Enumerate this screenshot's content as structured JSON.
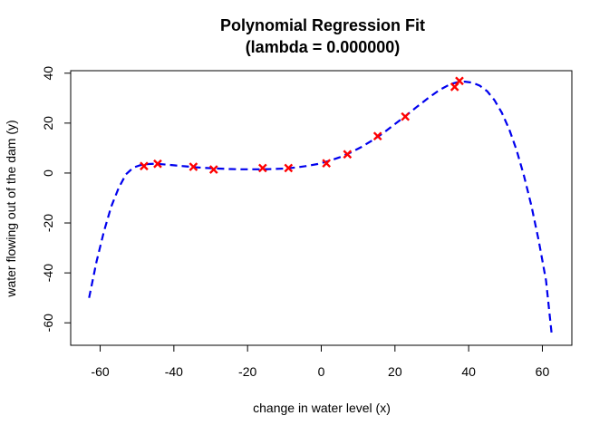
{
  "chart_data": {
    "type": "scatter",
    "title": "Polynomial Regression Fit",
    "subtitle": "(lambda = 0.000000)",
    "xlabel": "change in water level (x)",
    "ylabel": "water flowing out of the dam (y)",
    "xlim": [
      -68,
      68
    ],
    "ylim": [
      -69,
      41
    ],
    "xticks": [
      -60,
      -40,
      -20,
      0,
      20,
      40,
      60
    ],
    "xtick_labels": [
      "-60",
      "-40",
      "-20",
      "0",
      "20",
      "40",
      "60"
    ],
    "yticks": [
      -60,
      -40,
      -20,
      0,
      20,
      40
    ],
    "ytick_labels": [
      "-60",
      "-40",
      "-20",
      "0",
      "20",
      "40"
    ],
    "grid": false,
    "legend": "none",
    "colors": {
      "points": "#ff0000",
      "curve": "#0000ee"
    },
    "series": [
      {
        "type": "scatter",
        "marker": "x",
        "x": [
          -48.1,
          -44.4,
          -34.7,
          -29.2,
          -15.9,
          -8.9,
          1.4,
          7.1,
          15.3,
          22.8,
          36.2,
          37.5
        ],
        "y": [
          2.8,
          3.7,
          2.5,
          1.4,
          2.0,
          2.0,
          3.9,
          7.5,
          14.8,
          22.6,
          34.5,
          36.9
        ]
      },
      {
        "type": "line",
        "style": "dashed",
        "x": [
          -63,
          -61,
          -59,
          -57,
          -55,
          -53,
          -51,
          -49,
          -47,
          -45,
          -43,
          -40,
          -37,
          -34,
          -31,
          -28,
          -25,
          -22,
          -19,
          -16,
          -13,
          -10,
          -7,
          -4,
          -1,
          2,
          5,
          8,
          11,
          14,
          17,
          20,
          23,
          26,
          29,
          32,
          35,
          37,
          39,
          41,
          43,
          45,
          47,
          49,
          51,
          53,
          55,
          57,
          59,
          61,
          62.5
        ],
        "y": [
          -50,
          -35.5,
          -23.5,
          -13.5,
          -6,
          -0.5,
          2.2,
          3.2,
          3.6,
          3.7,
          3.5,
          3.1,
          2.7,
          2.3,
          2.0,
          1.8,
          1.6,
          1.5,
          1.5,
          1.5,
          1.6,
          1.8,
          2.2,
          2.8,
          3.6,
          4.8,
          6.3,
          8.2,
          10.5,
          13.2,
          16.2,
          19.6,
          23.0,
          26.6,
          30.0,
          33.2,
          35.6,
          36.4,
          36.6,
          36.2,
          35.0,
          32.8,
          29.2,
          24.2,
          17.5,
          9.2,
          -1.0,
          -13.0,
          -27.0,
          -43.0,
          -64.0
        ]
      }
    ]
  }
}
